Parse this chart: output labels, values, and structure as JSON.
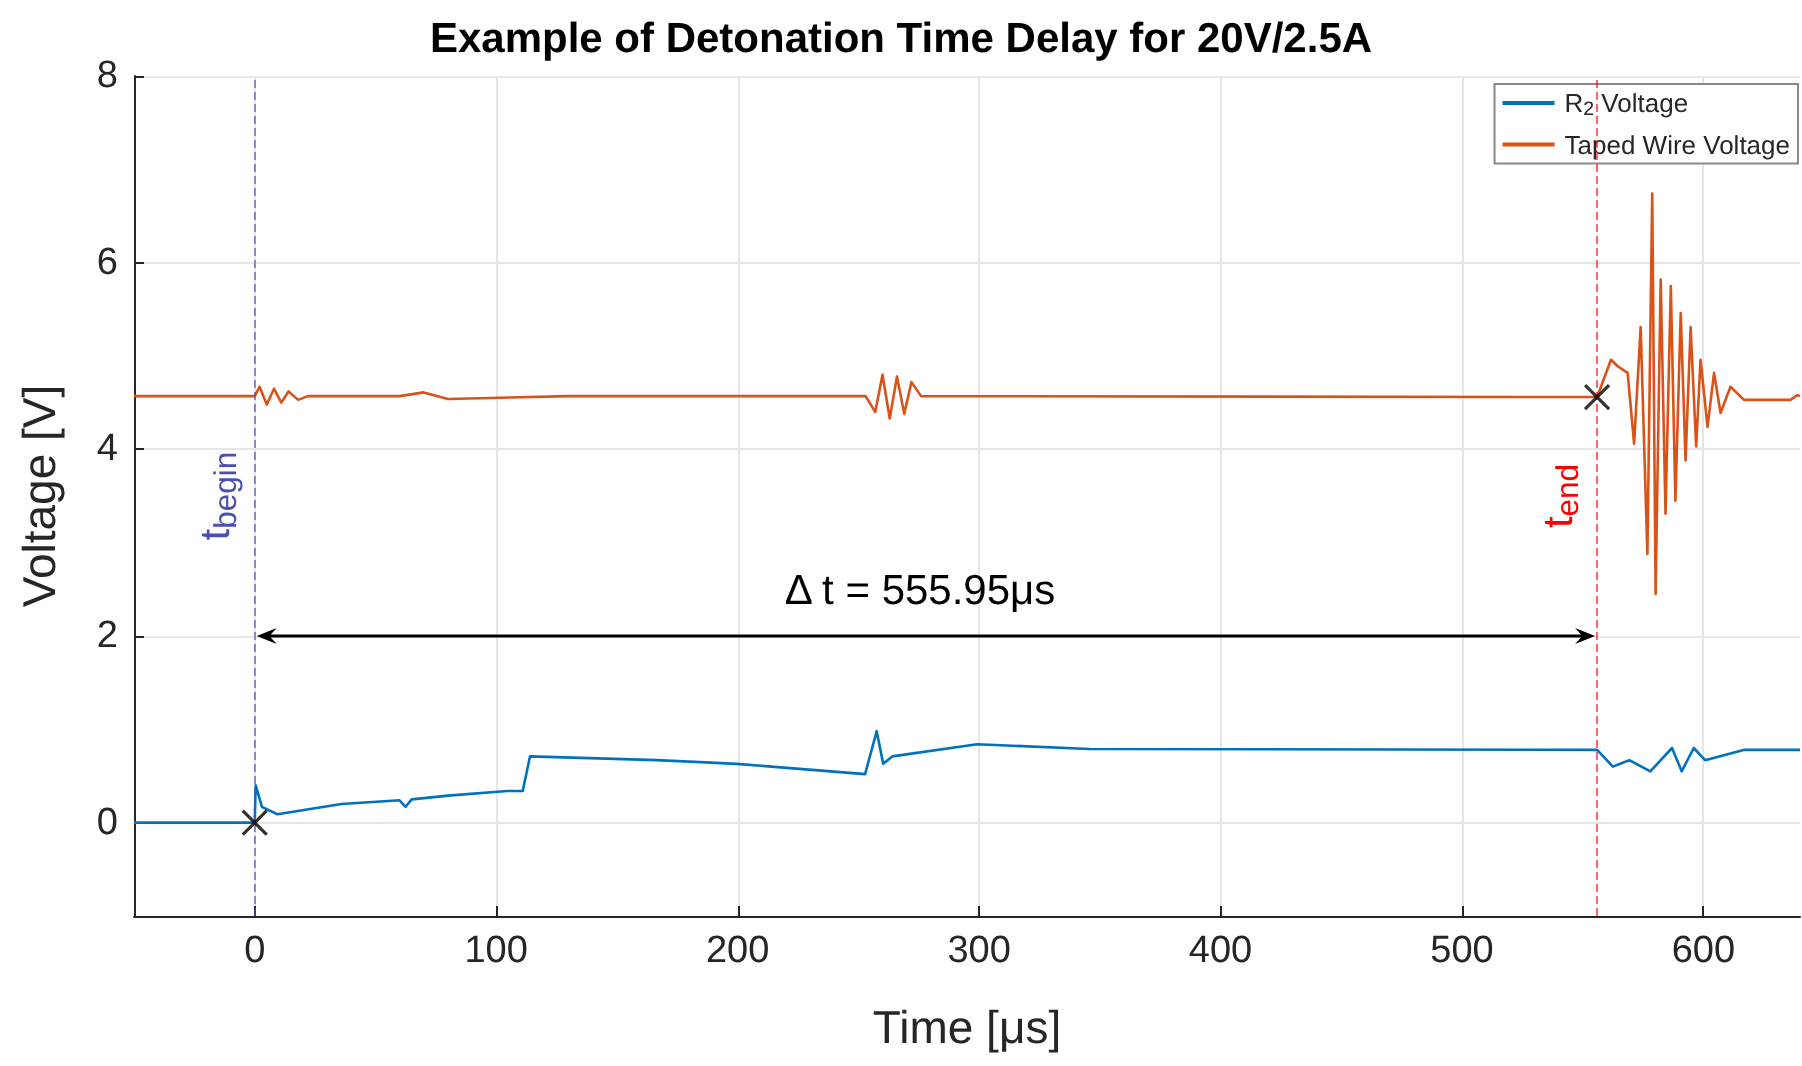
{
  "chart_data": {
    "type": "line",
    "title": "Example of Detonation Time Delay for 20V/2.5A",
    "xlabel": "Time [μs]",
    "ylabel": "Voltage [V]",
    "xlim": [
      -50,
      640
    ],
    "xticks": [
      0,
      100,
      200,
      300,
      400,
      500,
      600
    ],
    "ylim": [
      -1,
      8
    ],
    "yticks": [
      0,
      2,
      4,
      6,
      8
    ],
    "grid": true,
    "legend": "top right",
    "series": [
      {
        "name": "R$_{2}$ Voltage",
        "color": "#0072bd",
        "x": [
          -50,
          0,
          0.4,
          3,
          9.4,
          35.9,
          60,
          62.5,
          65,
          80.2,
          104.5,
          111,
          114,
          166.5,
          199.7,
          252.8,
          257.6,
          260.3,
          264,
          299.2,
          345.8,
          556,
          562.5,
          569.3,
          578,
          587,
          591,
          596,
          600.7,
          617,
          640
        ],
        "values": [
          0,
          0,
          0.4,
          0.17,
          0.09,
          0.2,
          0.24,
          0.17,
          0.25,
          0.29,
          0.34,
          0.34,
          0.71,
          0.67,
          0.63,
          0.52,
          0.98,
          0.63,
          0.71,
          0.84,
          0.79,
          0.78,
          0.6,
          0.67,
          0.55,
          0.8,
          0.55,
          0.8,
          0.67,
          0.78,
          0.78
        ]
      },
      {
        "name": "Taped Wire Voltage",
        "color": "#d95319",
        "x": [
          -50,
          0,
          2,
          5,
          8,
          11,
          14,
          18,
          22,
          60,
          70,
          80,
          130,
          253,
          257,
          260,
          263,
          266,
          269,
          272,
          276,
          556,
          561.7,
          564.5,
          568.6,
          571.3,
          574,
          576.8,
          578.8,
          580.2,
          582.3,
          584.3,
          586.5,
          588.4,
          590.6,
          592.6,
          594.7,
          597,
          598.8,
          601.7,
          604.4,
          607.1,
          611.2,
          616.8,
          636,
          638.8,
          640
        ],
        "values": [
          4.57,
          4.57,
          4.67,
          4.48,
          4.65,
          4.5,
          4.62,
          4.53,
          4.57,
          4.57,
          4.61,
          4.54,
          4.57,
          4.57,
          4.4,
          4.8,
          4.33,
          4.78,
          4.38,
          4.72,
          4.57,
          4.56,
          4.96,
          4.89,
          4.82,
          4.06,
          5.31,
          2.88,
          6.74,
          2.45,
          5.82,
          3.31,
          5.75,
          3.45,
          5.46,
          3.88,
          5.31,
          4.03,
          4.96,
          4.24,
          4.82,
          4.39,
          4.67,
          4.53,
          4.53,
          4.58,
          4.57
        ]
      },
      {
        "type": "scatter",
        "marker": "cross",
        "color": "#000000",
        "x": [
          0,
          555.95
        ],
        "values": [
          0,
          4.56
        ]
      }
    ],
    "ref_lines": [
      {
        "axis": "x",
        "value": 0,
        "label": "t$_{begin}$",
        "color": "#4a50b0",
        "line_style": "dashed"
      },
      {
        "axis": "x",
        "value": 555.95,
        "label": "t$_{end}$",
        "color": "#ff0000",
        "line_style": "dashed"
      }
    ],
    "annotations": [
      "Δ t = 555.95μs"
    ]
  }
}
